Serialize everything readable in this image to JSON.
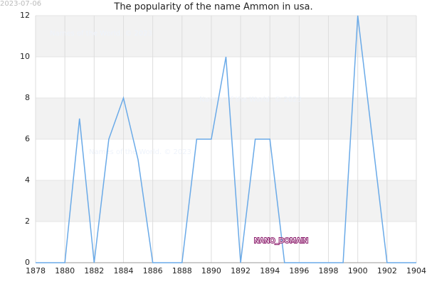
{
  "chart_data": {
    "type": "line",
    "title": "The popularity of the name Ammon in usa.",
    "date_stamp": "2023-07-06",
    "watermarks": [
      "Names of the World. © 2023",
      "Names of the World. © 2023",
      "Names of the World. © 2023"
    ],
    "badge": "NANO_DOMAIN",
    "x": [
      1878,
      1879,
      1880,
      1881,
      1882,
      1883,
      1884,
      1885,
      1886,
      1887,
      1888,
      1889,
      1890,
      1891,
      1892,
      1893,
      1894,
      1895,
      1896,
      1897,
      1898,
      1899,
      1900,
      1901,
      1902,
      1903,
      1904
    ],
    "series": [
      {
        "name": "Ammon",
        "color": "#6aaae8",
        "values": [
          0,
          0,
          0,
          7,
          0,
          6,
          8,
          5,
          0,
          0,
          0,
          6,
          6,
          10,
          0,
          6,
          6,
          0,
          0,
          0,
          0,
          0,
          12,
          6,
          0,
          0,
          0
        ]
      }
    ],
    "xlim": [
      1878,
      1904
    ],
    "xticks": [
      1878,
      1880,
      1882,
      1884,
      1886,
      1888,
      1890,
      1892,
      1894,
      1896,
      1898,
      1900,
      1902,
      1904
    ],
    "ylim": [
      0,
      12
    ],
    "yticks": [
      0,
      2,
      4,
      6,
      8,
      10,
      12
    ],
    "grid": true,
    "band_color": "#f2f2f2"
  }
}
